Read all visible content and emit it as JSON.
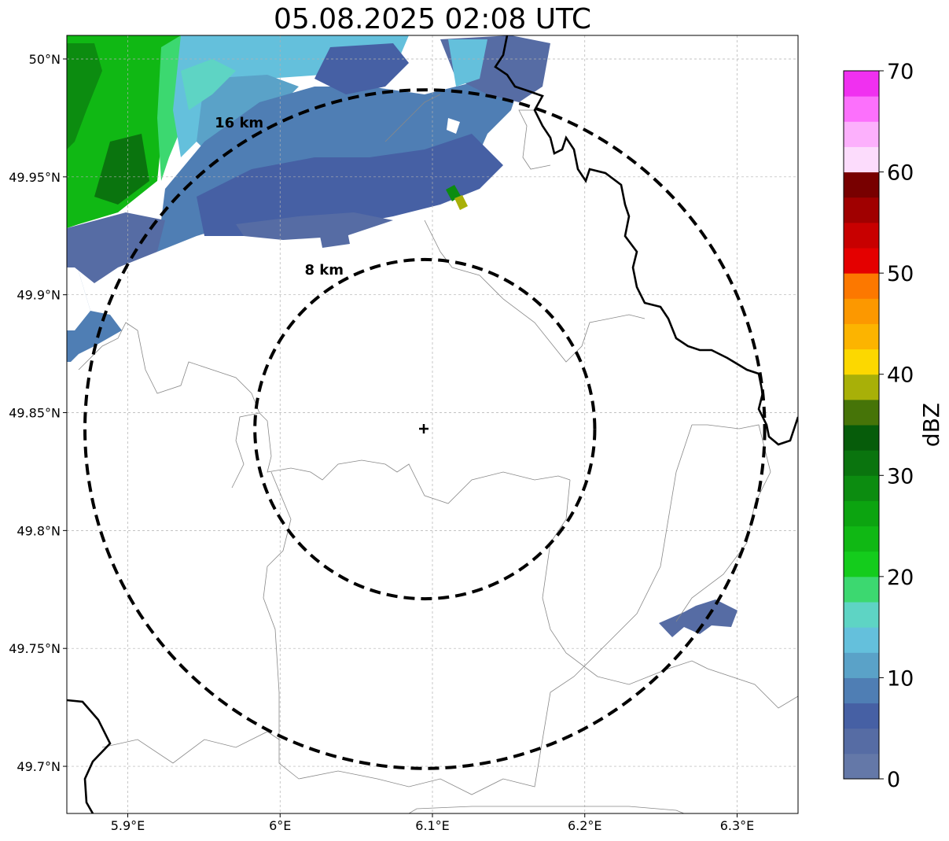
{
  "title": "05.08.2025 02:08 UTC",
  "map": {
    "lon_range": [
      5.86,
      6.34
    ],
    "lat_range": [
      49.68,
      50.01
    ],
    "lon_ticks": [
      {
        "value": 5.9,
        "label": "5.9°E"
      },
      {
        "value": 6.0,
        "label": "6°E"
      },
      {
        "value": 6.1,
        "label": "6.1°E"
      },
      {
        "value": 6.2,
        "label": "6.2°E"
      },
      {
        "value": 6.3,
        "label": "6.3°E"
      }
    ],
    "lat_ticks": [
      {
        "value": 50.0,
        "label": "50°N"
      },
      {
        "value": 49.95,
        "label": "49.95°N"
      },
      {
        "value": 49.9,
        "label": "49.9°N"
      },
      {
        "value": 49.85,
        "label": "49.85°N"
      },
      {
        "value": 49.8,
        "label": "49.8°N"
      },
      {
        "value": 49.75,
        "label": "49.75°N"
      },
      {
        "value": 49.7,
        "label": "49.7°N"
      }
    ],
    "center": {
      "lon": 6.095,
      "lat": 49.843
    },
    "rings": [
      {
        "label": "8 km",
        "radius_km": 8
      },
      {
        "label": "16 km",
        "radius_km": 16
      }
    ],
    "gridlines": true
  },
  "colorbar": {
    "label": "dBZ",
    "min": 0,
    "max": 70,
    "step": 2.5,
    "ticks": [
      "0",
      "10",
      "20",
      "30",
      "40",
      "50",
      "60",
      "70"
    ],
    "colors": [
      "#6478a8",
      "#566ca4",
      "#4660a4",
      "#4f7eb4",
      "#5aa2c8",
      "#64c0dc",
      "#5ed4c4",
      "#3cd870",
      "#14cc1c",
      "#10b814",
      "#0ca410",
      "#0c8c10",
      "#0a740e",
      "#065c0a",
      "#467408",
      "#a8b008",
      "#fcd800",
      "#fcb400",
      "#fc9800",
      "#fc7800",
      "#e40000",
      "#c80000",
      "#a00000",
      "#780000",
      "#fcdcfc",
      "#fcb0fc",
      "#fc70fc",
      "#f030f0"
    ]
  }
}
